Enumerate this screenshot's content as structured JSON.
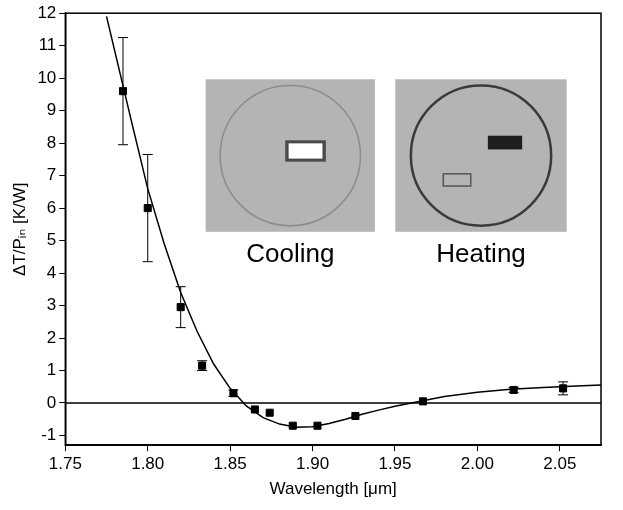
{
  "chart_data": {
    "type": "scatter",
    "x_label": "Wavelength [μm]",
    "y_label": "ΔT/Pᵢₙ [K/W]",
    "xlim": [
      1.75,
      2.075
    ],
    "xticks": [
      1.75,
      {
        "value": 1.8,
        "label": "1.80"
      },
      1.85,
      {
        "value": 1.9,
        "label": "1.90"
      },
      1.95,
      {
        "value": 2.0,
        "label": "2.00"
      },
      2.05
    ],
    "ylim": [
      -1.3,
      12
    ],
    "yticks": [
      -1,
      0,
      1,
      2,
      3,
      4,
      5,
      6,
      7,
      8,
      9,
      10,
      11,
      12
    ],
    "grid": false,
    "hlines": [
      0
    ],
    "insets": [
      {
        "label": "Cooling"
      },
      {
        "label": "Heating"
      }
    ],
    "series": [
      {
        "type": "scatter",
        "marker": "square",
        "color": "#000000",
        "x": [
          1.785,
          1.8,
          1.82,
          1.833,
          1.852,
          1.865,
          1.874,
          1.888,
          1.903,
          1.926,
          1.967,
          2.022,
          2.052
        ],
        "values": [
          9.6,
          6.0,
          2.95,
          1.15,
          0.3,
          -0.2,
          -0.3,
          -0.7,
          -0.7,
          -0.4,
          0.05,
          0.4,
          0.45
        ],
        "errors": [
          1.65,
          1.65,
          0.63,
          0.15,
          0.1,
          null,
          null,
          null,
          null,
          null,
          null,
          0.08,
          0.2
        ]
      },
      {
        "type": "line",
        "line_style": "solid",
        "color": "#000000",
        "x": [
          1.775,
          1.79,
          1.8,
          1.81,
          1.82,
          1.83,
          1.84,
          1.85,
          1.86,
          1.87,
          1.88,
          1.89,
          1.9,
          1.91,
          1.92,
          1.93,
          1.94,
          1.95,
          1.96,
          1.97,
          1.98,
          2.0,
          2.02,
          2.04,
          2.06,
          2.075
        ],
        "values": [
          11.9,
          8.7,
          6.6,
          4.9,
          3.4,
          2.2,
          1.2,
          0.45,
          -0.1,
          -0.45,
          -0.65,
          -0.75,
          -0.73,
          -0.63,
          -0.5,
          -0.35,
          -0.22,
          -0.1,
          0.0,
          0.1,
          0.2,
          0.33,
          0.42,
          0.48,
          0.52,
          0.55
        ]
      }
    ]
  }
}
